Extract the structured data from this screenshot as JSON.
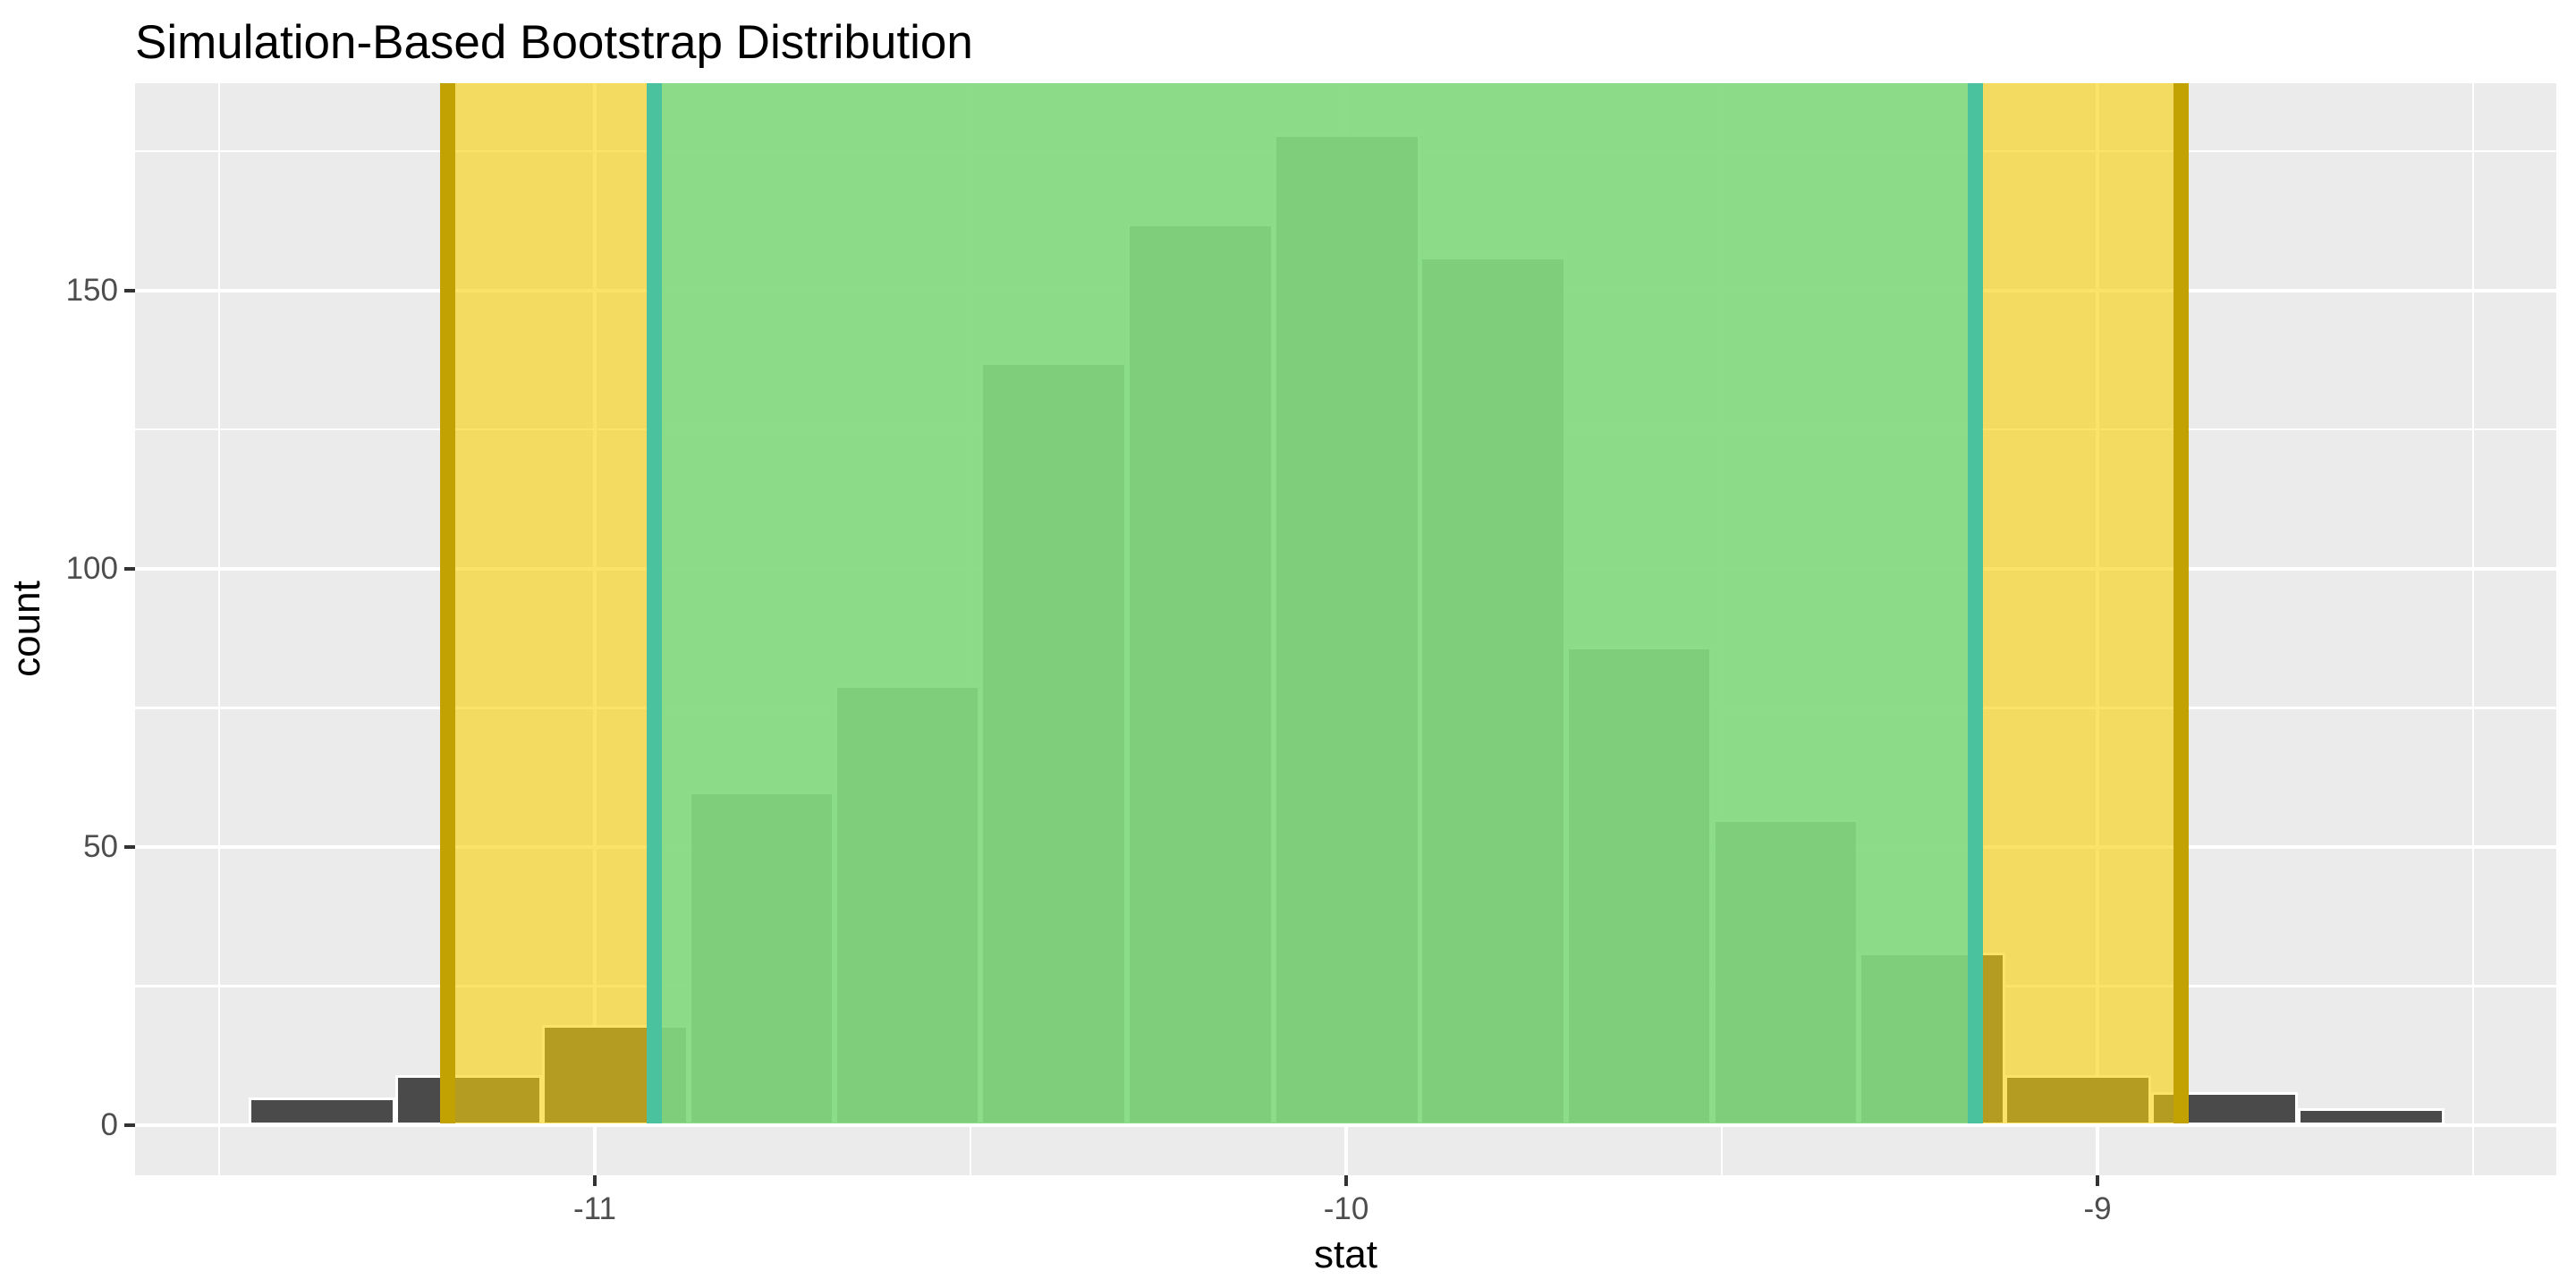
{
  "chart_data": {
    "type": "bar",
    "subtype": "histogram",
    "title": "Simulation-Based Bootstrap Distribution",
    "xlabel": "stat",
    "ylabel": "count",
    "x_ticks": [
      -11,
      -10,
      -9
    ],
    "x_tick_labels": [
      "-11",
      "-10",
      "-9"
    ],
    "x_minor_ticks": [
      -11.5,
      -10.5,
      -9.5,
      -8.5
    ],
    "y_ticks": [
      0,
      50,
      100,
      150
    ],
    "y_tick_labels": [
      "0",
      "50",
      "100",
      "150"
    ],
    "y_minor_ticks": [
      25,
      75,
      125,
      175
    ],
    "xlim": [
      -11.61,
      -8.39
    ],
    "ylim": [
      -9,
      187
    ],
    "grid": true,
    "legend": false,
    "binwidth": 0.195,
    "bins": [
      {
        "center": -11.363,
        "count": 5
      },
      {
        "center": -11.168,
        "count": 9
      },
      {
        "center": -10.973,
        "count": 18
      },
      {
        "center": -10.778,
        "count": 60
      },
      {
        "center": -10.584,
        "count": 79
      },
      {
        "center": -10.389,
        "count": 137
      },
      {
        "center": -10.194,
        "count": 162
      },
      {
        "center": -9.999,
        "count": 178
      },
      {
        "center": -9.805,
        "count": 156
      },
      {
        "center": -9.61,
        "count": 86
      },
      {
        "center": -9.415,
        "count": 55
      },
      {
        "center": -9.22,
        "count": 31
      },
      {
        "center": -9.026,
        "count": 9
      },
      {
        "center": -8.831,
        "count": 6
      },
      {
        "center": -8.636,
        "count": 3
      }
    ],
    "confidence_intervals": [
      {
        "name": "outer-interval",
        "endpoints": [
          -11.196,
          -8.889
        ],
        "fill": "rgba(248,209,11,0.61)",
        "line_color": "#C2A103",
        "line_width": 17
      },
      {
        "name": "inner-interval",
        "endpoints": [
          -10.921,
          -9.162
        ],
        "fill": "rgba(112,219,146,0.8)",
        "line_color": "#4AC29E",
        "line_width": 17
      }
    ]
  },
  "colors": {
    "panel_bg": "#EBEBEB",
    "grid_line": "#FFFFFF",
    "bar_fill": "#4A4A4A",
    "bar_border": "#FFFFFF",
    "axis_text": "#4D4D4D",
    "tick_mark": "#333333",
    "title_text": "#000000"
  }
}
